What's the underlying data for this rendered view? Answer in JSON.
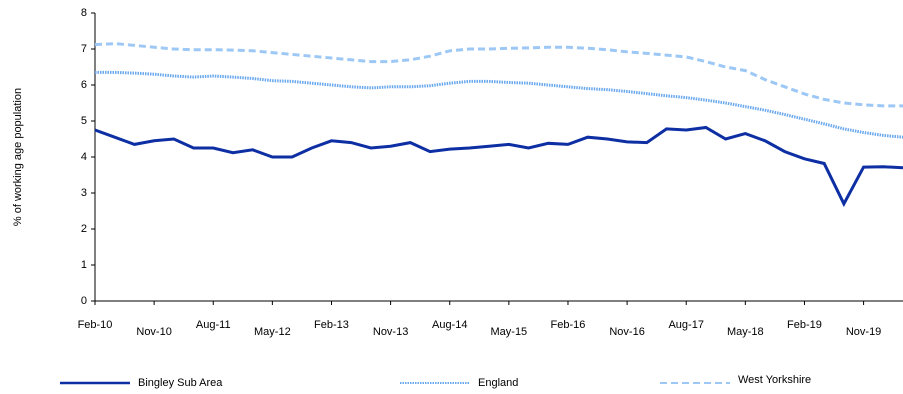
{
  "chart_data": {
    "type": "line",
    "y_label": "% of working age population",
    "categories": [
      "Feb-10",
      null,
      null,
      "Nov-10",
      null,
      null,
      "Aug-11",
      null,
      null,
      "May-12",
      null,
      null,
      "Feb-13",
      null,
      null,
      "Nov-13",
      null,
      null,
      "Aug-14",
      null,
      null,
      "May-15",
      null,
      null,
      "Feb-16",
      null,
      null,
      "Nov-16",
      null,
      null,
      "Aug-17",
      null,
      null,
      "May-18",
      null,
      null,
      "Feb-19",
      null,
      null,
      "Nov-19",
      null,
      null
    ],
    "series": [
      {
        "name": "Bingley Sub Area",
        "color": "#0d2fa3",
        "style": "solid",
        "values": [
          4.75,
          4.55,
          4.35,
          4.45,
          4.5,
          4.25,
          4.25,
          4.12,
          4.2,
          4.0,
          4.0,
          4.25,
          4.45,
          4.4,
          4.25,
          4.3,
          4.4,
          4.15,
          4.22,
          4.25,
          4.3,
          4.35,
          4.25,
          4.38,
          4.35,
          4.55,
          4.5,
          4.42,
          4.4,
          4.78,
          4.75,
          4.82,
          4.5,
          4.65,
          4.45,
          4.15,
          3.95,
          3.82,
          2.7,
          3.72,
          3.73,
          3.7
        ]
      },
      {
        "name": "England",
        "color": "#6aa8ee",
        "style": "dotted",
        "values": [
          6.35,
          6.35,
          6.33,
          6.3,
          6.25,
          6.22,
          6.25,
          6.22,
          6.18,
          6.12,
          6.1,
          6.05,
          6.0,
          5.95,
          5.92,
          5.95,
          5.95,
          5.98,
          6.05,
          6.1,
          6.1,
          6.07,
          6.05,
          6.0,
          5.95,
          5.9,
          5.87,
          5.82,
          5.76,
          5.7,
          5.65,
          5.58,
          5.5,
          5.4,
          5.3,
          5.18,
          5.05,
          4.92,
          4.78,
          4.68,
          4.6,
          4.55
        ]
      },
      {
        "name": "West Yorkshire",
        "color": "#9dc8f5",
        "style": "dashed",
        "values": [
          7.12,
          7.15,
          7.1,
          7.05,
          7.0,
          6.98,
          6.98,
          6.97,
          6.95,
          6.9,
          6.85,
          6.8,
          6.75,
          6.7,
          6.65,
          6.65,
          6.7,
          6.8,
          6.95,
          7.0,
          7.0,
          7.02,
          7.03,
          7.05,
          7.05,
          7.02,
          6.98,
          6.92,
          6.88,
          6.83,
          6.78,
          6.65,
          6.5,
          6.4,
          6.15,
          5.95,
          5.75,
          5.6,
          5.5,
          5.45,
          5.42,
          5.42
        ]
      }
    ],
    "ylim": [
      0,
      8
    ],
    "yticks": [
      0,
      1,
      2,
      3,
      4,
      5,
      6,
      7,
      8
    ]
  }
}
